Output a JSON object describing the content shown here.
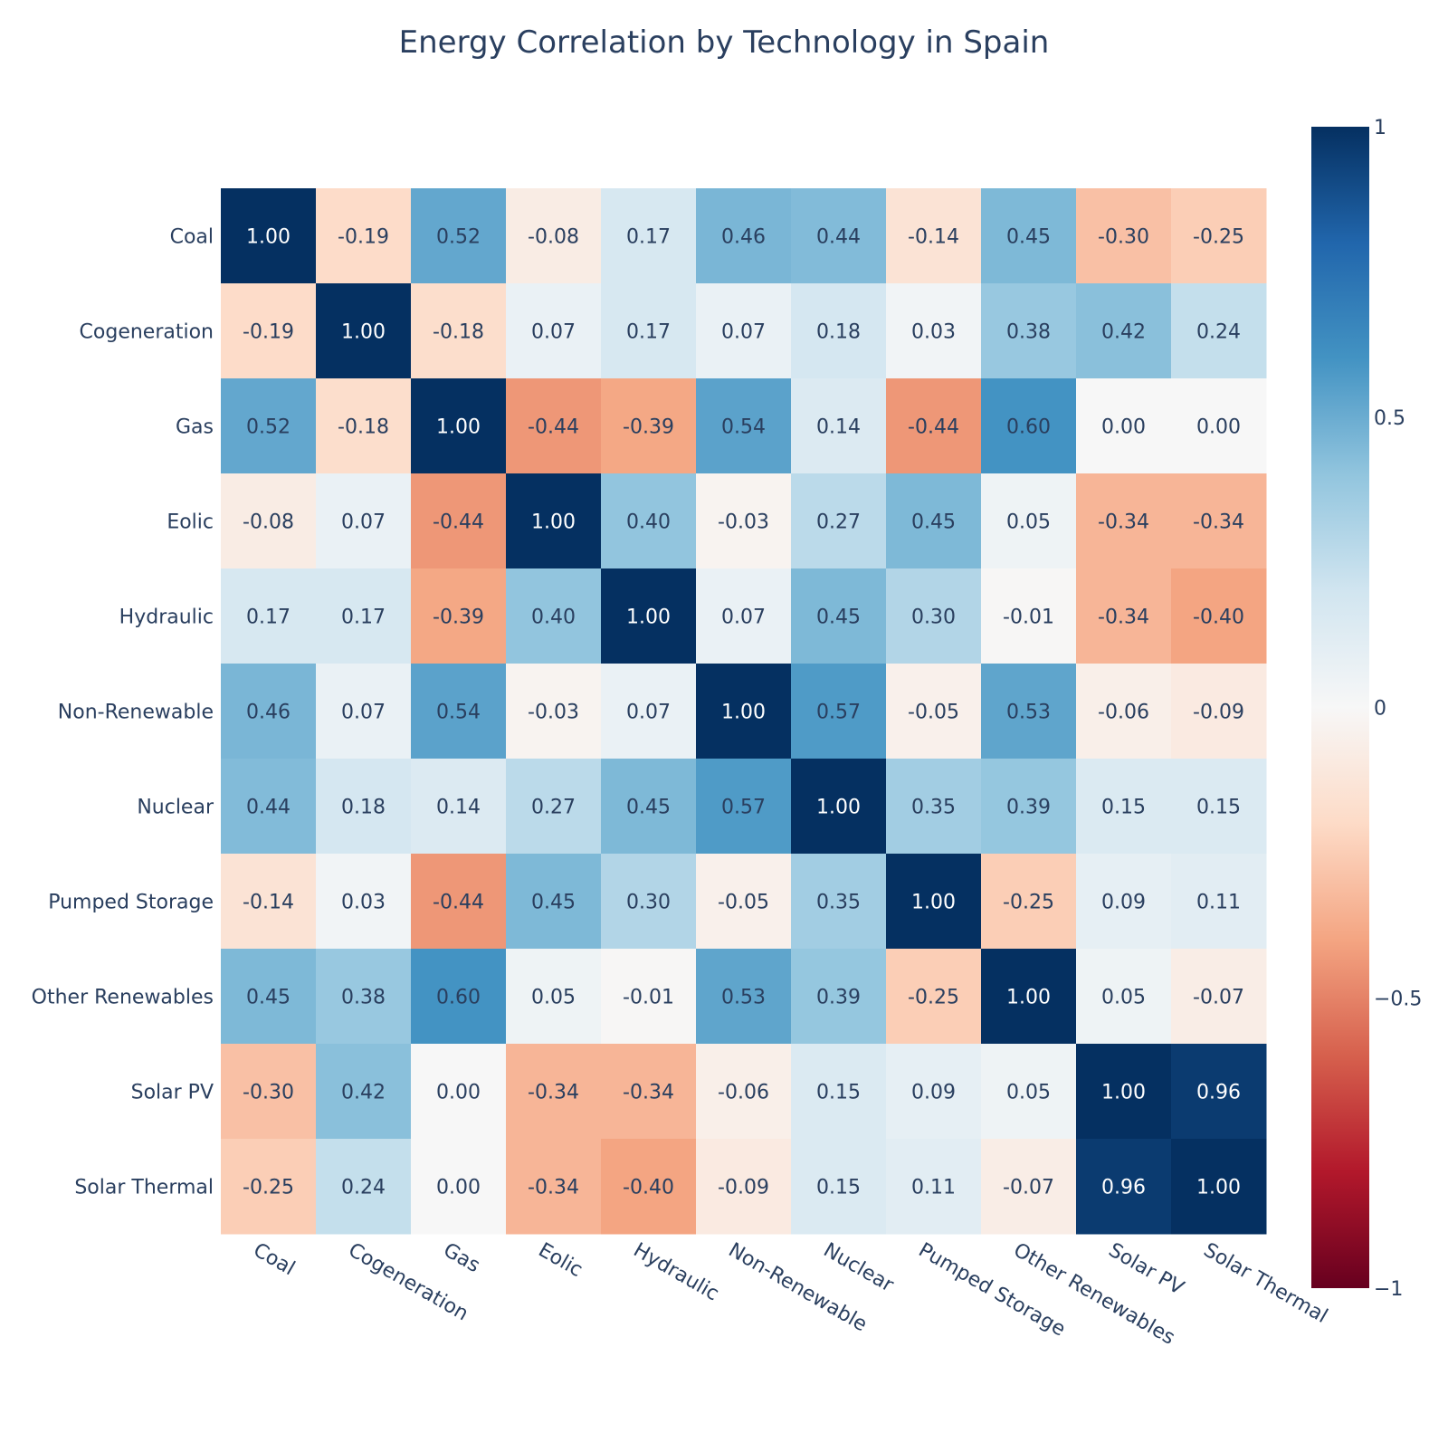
{
  "chart_data": {
    "type": "heatmap",
    "title": "Energy Correlation by Technology in Spain",
    "xlabel": "",
    "ylabel": "",
    "categories": [
      "Coal",
      "Cogeneration",
      "Gas",
      "Eolic",
      "Hydraulic",
      "Non-Renewable",
      "Nuclear",
      "Pumped Storage",
      "Other Renewables",
      "Solar PV",
      "Solar Thermal"
    ],
    "values": [
      [
        1.0,
        -0.19,
        0.52,
        -0.08,
        0.17,
        0.46,
        0.44,
        -0.14,
        0.45,
        -0.3,
        -0.25
      ],
      [
        -0.19,
        1.0,
        -0.18,
        0.07,
        0.17,
        0.07,
        0.18,
        0.03,
        0.38,
        0.42,
        0.24
      ],
      [
        0.52,
        -0.18,
        1.0,
        -0.44,
        -0.39,
        0.54,
        0.14,
        -0.44,
        0.6,
        0.0,
        0.0
      ],
      [
        -0.08,
        0.07,
        -0.44,
        1.0,
        0.4,
        -0.03,
        0.27,
        0.45,
        0.05,
        -0.34,
        -0.34
      ],
      [
        0.17,
        0.17,
        -0.39,
        0.4,
        1.0,
        0.07,
        0.45,
        0.3,
        -0.01,
        -0.34,
        -0.4
      ],
      [
        0.46,
        0.07,
        0.54,
        -0.03,
        0.07,
        1.0,
        0.57,
        -0.05,
        0.53,
        -0.06,
        -0.09
      ],
      [
        0.44,
        0.18,
        0.14,
        0.27,
        0.45,
        0.57,
        1.0,
        0.35,
        0.39,
        0.15,
        0.15
      ],
      [
        -0.14,
        0.03,
        -0.44,
        0.45,
        0.3,
        -0.05,
        0.35,
        1.0,
        -0.25,
        0.09,
        0.11
      ],
      [
        0.45,
        0.38,
        0.6,
        0.05,
        -0.01,
        0.53,
        0.39,
        -0.25,
        1.0,
        0.05,
        -0.07
      ],
      [
        -0.3,
        0.42,
        0.0,
        -0.34,
        -0.34,
        -0.06,
        0.15,
        0.09,
        0.05,
        1.0,
        0.96
      ],
      [
        -0.25,
        0.24,
        0.0,
        -0.34,
        -0.4,
        -0.09,
        0.15,
        0.11,
        -0.07,
        0.96,
        1.0
      ]
    ],
    "zlim": [
      -1,
      1
    ],
    "colorbar_ticks": [
      1,
      0.5,
      0,
      -0.5,
      -1
    ],
    "colorbar_tick_labels": [
      "1",
      "0.5",
      "0",
      "−0.5",
      "−1"
    ],
    "colorscale": "RdBu",
    "grid": false,
    "legend": "colorbar-right"
  }
}
